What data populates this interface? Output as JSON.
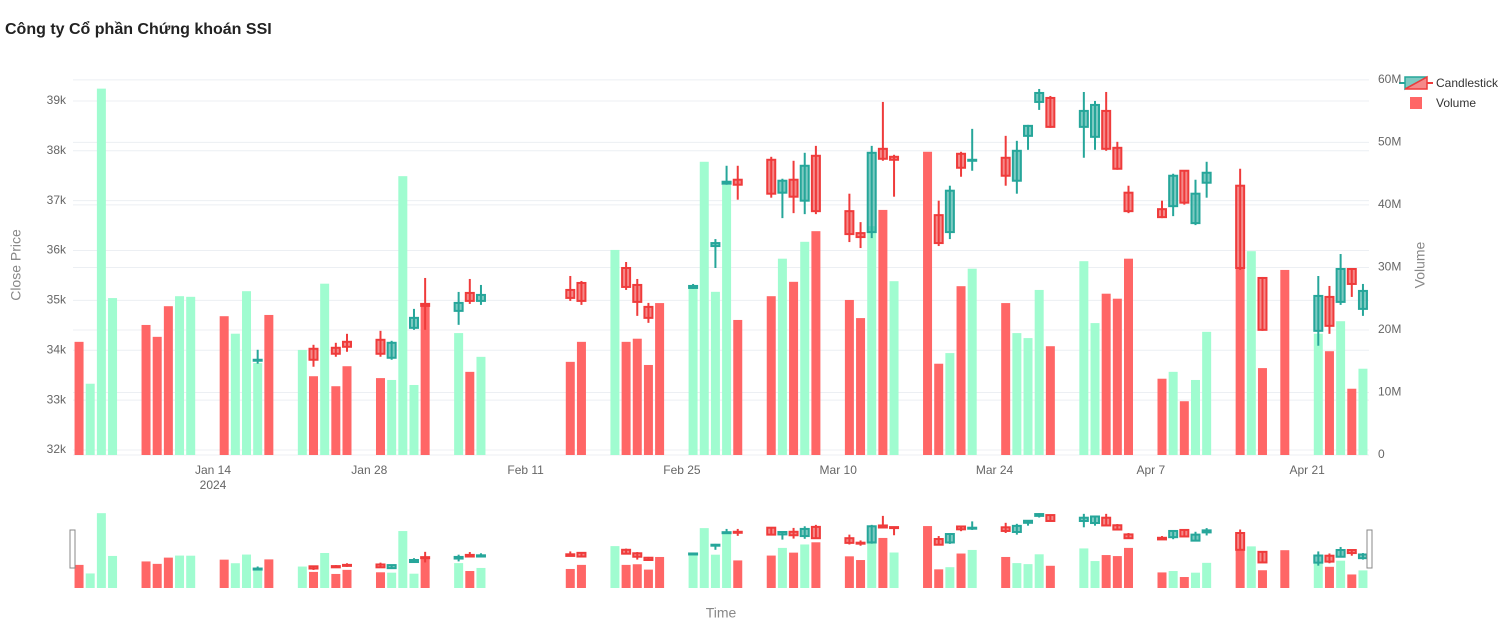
{
  "chart_data": {
    "type": "candlestick",
    "title": "Công ty Cổ phần Chứng khoán SSI",
    "x_label": "Time",
    "y_label": "Close Price",
    "y2_label": "Volume",
    "x": [
      "2024-01-02",
      "2024-01-03",
      "2024-01-04",
      "2024-01-05",
      "2024-01-08",
      "2024-01-09",
      "2024-01-10",
      "2024-01-11",
      "2024-01-12",
      "2024-01-15",
      "2024-01-16",
      "2024-01-17",
      "2024-01-18",
      "2024-01-19",
      "2024-01-22",
      "2024-01-23",
      "2024-01-24",
      "2024-01-25",
      "2024-01-26",
      "2024-01-29",
      "2024-01-30",
      "2024-01-31",
      "2024-02-01",
      "2024-02-02",
      "2024-02-05",
      "2024-02-06",
      "2024-02-07",
      "2024-02-15",
      "2024-02-16",
      "2024-02-19",
      "2024-02-20",
      "2024-02-21",
      "2024-02-22",
      "2024-02-23",
      "2024-02-26",
      "2024-02-27",
      "2024-02-28",
      "2024-02-29",
      "2024-03-01",
      "2024-03-04",
      "2024-03-05",
      "2024-03-06",
      "2024-03-07",
      "2024-03-08",
      "2024-03-11",
      "2024-03-12",
      "2024-03-13",
      "2024-03-14",
      "2024-03-15",
      "2024-03-18",
      "2024-03-19",
      "2024-03-20",
      "2024-03-21",
      "2024-03-22",
      "2024-03-25",
      "2024-03-26",
      "2024-03-27",
      "2024-03-28",
      "2024-03-29",
      "2024-04-01",
      "2024-04-02",
      "2024-04-03",
      "2024-04-04",
      "2024-04-05",
      "2024-04-08",
      "2024-04-09",
      "2024-04-10",
      "2024-04-11",
      "2024-04-12",
      "2024-04-15",
      "2024-04-16",
      "2024-04-17",
      "2024-04-19",
      "2024-04-22",
      "2024-04-23",
      "2024-04-24",
      "2024-04-25",
      "2024-04-26"
    ],
    "series": [
      {
        "name": "Candlestick",
        "type": "candlestick",
        "increasing_color": "#26a69a",
        "decreasing_color": "#ef3b3b",
        "open": [
          null,
          null,
          null,
          null,
          null,
          null,
          null,
          null,
          null,
          null,
          null,
          null,
          33790,
          null,
          null,
          34030,
          null,
          34050,
          34170,
          34210,
          33850,
          null,
          34450,
          34930,
          34790,
          35150,
          34990,
          35210,
          35350,
          null,
          35650,
          35310,
          34870,
          null,
          35250,
          null,
          36090,
          37340,
          37420,
          37820,
          37160,
          37420,
          37000,
          37900,
          36790,
          36350,
          36370,
          38040,
          37880,
          null,
          36710,
          36370,
          37940,
          37800,
          37860,
          37400,
          38300,
          38980,
          39060,
          38480,
          38280,
          38800,
          38060,
          37160,
          36830,
          36890,
          37600,
          36550,
          37360,
          37300,
          null,
          35450,
          null,
          34390,
          35070,
          34970,
          35630,
          34830
        ],
        "high": [
          null,
          null,
          null,
          null,
          null,
          null,
          null,
          null,
          null,
          null,
          null,
          null,
          34010,
          null,
          null,
          34110,
          null,
          34150,
          34330,
          34390,
          34190,
          null,
          34830,
          35450,
          35170,
          35430,
          35310,
          35490,
          35390,
          null,
          35770,
          35430,
          34950,
          null,
          35330,
          null,
          36230,
          37700,
          37700,
          37880,
          37440,
          37800,
          37960,
          38100,
          37140,
          36570,
          38100,
          38980,
          37920,
          null,
          37000,
          37300,
          37980,
          38440,
          38300,
          38200,
          38520,
          39240,
          39100,
          39180,
          39000,
          39180,
          38180,
          37300,
          37000,
          37540,
          37600,
          37420,
          37780,
          37640,
          null,
          35470,
          null,
          35490,
          35290,
          35930,
          35630,
          35330
        ],
        "low": [
          null,
          null,
          null,
          null,
          null,
          null,
          null,
          null,
          null,
          null,
          null,
          null,
          33730,
          null,
          null,
          33670,
          null,
          33870,
          33970,
          33870,
          33810,
          null,
          34410,
          34410,
          34510,
          34930,
          34910,
          34990,
          34910,
          null,
          35210,
          34690,
          34550,
          null,
          35230,
          null,
          35650,
          37320,
          37020,
          37060,
          36650,
          36750,
          36730,
          36730,
          36170,
          36050,
          36250,
          37800,
          37080,
          null,
          36090,
          36230,
          37480,
          37600,
          37300,
          37140,
          38020,
          38820,
          38460,
          37860,
          38020,
          38000,
          37620,
          36750,
          36650,
          36690,
          36920,
          36510,
          37060,
          35610,
          null,
          34390,
          null,
          34090,
          34330,
          34910,
          35070,
          34690
        ],
        "close": [
          null,
          null,
          null,
          null,
          null,
          null,
          null,
          null,
          null,
          null,
          null,
          null,
          33810,
          null,
          null,
          33810,
          null,
          33930,
          34070,
          33930,
          34150,
          null,
          34650,
          34890,
          34950,
          34990,
          35110,
          35050,
          34990,
          null,
          35270,
          34970,
          34650,
          null,
          35290,
          null,
          36150,
          37380,
          37320,
          37140,
          37400,
          37080,
          37700,
          36790,
          36330,
          36270,
          37960,
          37840,
          37820,
          null,
          36150,
          37200,
          37660,
          37820,
          37500,
          38000,
          38500,
          39160,
          38480,
          38800,
          38920,
          38040,
          37640,
          36790,
          36670,
          37500,
          36960,
          37140,
          37560,
          35650,
          null,
          34410,
          null,
          35090,
          34490,
          35630,
          35330,
          35190
        ]
      },
      {
        "name": "Volume",
        "type": "bar",
        "axis": "y2",
        "color": "#ff6666",
        "values": [
          18100000,
          11400000,
          58600000,
          25100000,
          20800000,
          18900000,
          23800000,
          25400000,
          25300000,
          22200000,
          19400000,
          26200000,
          14700000,
          22400000,
          16800000,
          12600000,
          27400000,
          11000000,
          14200000,
          12300000,
          12000000,
          44600000,
          11200000,
          24000000,
          19500000,
          13300000,
          15700000,
          14900000,
          18100000,
          32800000,
          18100000,
          18600000,
          14400000,
          24300000,
          26700000,
          46900000,
          26100000,
          43200000,
          21600000,
          25400000,
          31400000,
          27700000,
          34100000,
          35800000,
          24800000,
          21900000,
          36600000,
          39200000,
          27800000,
          48500000,
          14600000,
          16300000,
          27000000,
          29800000,
          24300000,
          19500000,
          18700000,
          26400000,
          17400000,
          31000000,
          21100000,
          25800000,
          25000000,
          31400000,
          12200000,
          13300000,
          8600000,
          12000000,
          19700000,
          29900000,
          32600000,
          13900000,
          29600000,
          19400000,
          16600000,
          21400000,
          10600000,
          13800000
        ],
        "colors": [
          "#ff6666",
          "#a0fcd0",
          "#a0fcd0",
          "#a0fcd0",
          "#ff6666",
          "#ff6666",
          "#ff6666",
          "#a0fcd0",
          "#a0fcd0",
          "#ff6666",
          "#a0fcd0",
          "#a0fcd0",
          "#a0fcd0",
          "#ff6666",
          "#a0fcd0",
          "#ff6666",
          "#a0fcd0",
          "#ff6666",
          "#ff6666",
          "#ff6666",
          "#a0fcd0",
          "#a0fcd0",
          "#a0fcd0",
          "#ff6666",
          "#a0fcd0",
          "#ff6666",
          "#a0fcd0",
          "#ff6666",
          "#ff6666",
          "#a0fcd0",
          "#ff6666",
          "#ff6666",
          "#ff6666",
          "#ff6666",
          "#a0fcd0",
          "#a0fcd0",
          "#a0fcd0",
          "#a0fcd0",
          "#ff6666",
          "#ff6666",
          "#a0fcd0",
          "#ff6666",
          "#a0fcd0",
          "#ff6666",
          "#ff6666",
          "#ff6666",
          "#a0fcd0",
          "#ff6666",
          "#a0fcd0",
          "#ff6666",
          "#ff6666",
          "#a0fcd0",
          "#ff6666",
          "#a0fcd0",
          "#ff6666",
          "#a0fcd0",
          "#a0fcd0",
          "#a0fcd0",
          "#ff6666",
          "#a0fcd0",
          "#a0fcd0",
          "#ff6666",
          "#ff6666",
          "#ff6666",
          "#ff6666",
          "#a0fcd0",
          "#ff6666",
          "#a0fcd0",
          "#a0fcd0",
          "#ff6666",
          "#a0fcd0",
          "#ff6666",
          "#ff6666",
          "#a0fcd0",
          "#ff6666",
          "#a0fcd0",
          "#ff6666",
          "#a0fcd0"
        ]
      }
    ],
    "xlim": [
      "2024-01-01T11:00:00",
      "2024-04-26T13:00:00"
    ],
    "xticks": [
      {
        "value": "2024-01-14",
        "label": "Jan 14\n2024"
      },
      {
        "value": "2024-01-28",
        "label": "Jan 28"
      },
      {
        "value": "2024-02-11",
        "label": "Feb 11"
      },
      {
        "value": "2024-02-25",
        "label": "Feb 25"
      },
      {
        "value": "2024-03-10",
        "label": "Mar 10"
      },
      {
        "value": "2024-03-24",
        "label": "Mar 24"
      },
      {
        "value": "2024-04-07",
        "label": "Apr 7"
      },
      {
        "value": "2024-04-21",
        "label": "Apr 21"
      }
    ],
    "ylim": [
      31900,
      39460
    ],
    "yticks": [
      {
        "value": 32000,
        "label": "32k"
      },
      {
        "value": 33000,
        "label": "33k"
      },
      {
        "value": 34000,
        "label": "34k"
      },
      {
        "value": 35000,
        "label": "35k"
      },
      {
        "value": 36000,
        "label": "36k"
      },
      {
        "value": 37000,
        "label": "37k"
      },
      {
        "value": 38000,
        "label": "38k"
      },
      {
        "value": 39000,
        "label": "39k"
      }
    ],
    "y2lim": [
      0,
      60300000
    ],
    "y2ticks": [
      0,
      {
        "value": 10000000,
        "label": "10M"
      },
      {
        "value": 20000000,
        "label": "20M"
      },
      {
        "value": 30000000,
        "label": "30M"
      },
      {
        "value": 40000000,
        "label": "40M"
      },
      {
        "value": 50000000,
        "label": "50M"
      },
      {
        "value": 60000000,
        "label": "60M"
      }
    ],
    "grid": true,
    "legend": "top-right",
    "range_slider": true
  }
}
